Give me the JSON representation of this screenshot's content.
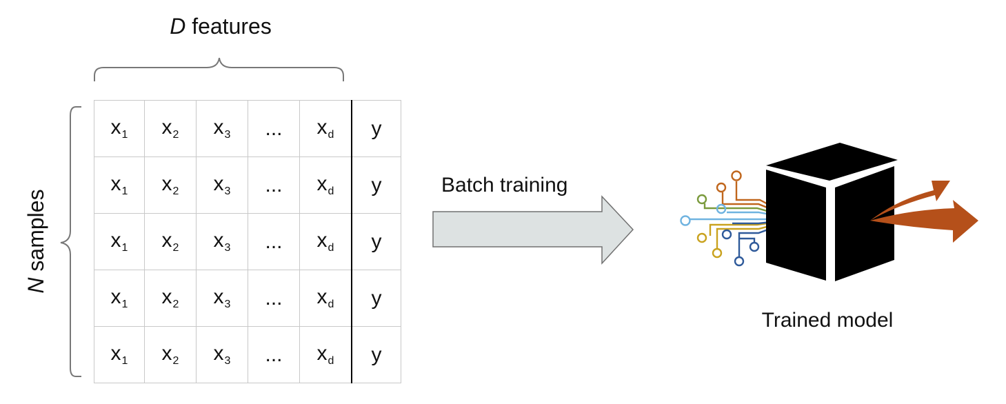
{
  "features": {
    "variable": "D",
    "text": " features"
  },
  "samples": {
    "variable": "N",
    "text": " samples"
  },
  "table": {
    "rows": [
      [
        "x",
        "x",
        "x",
        "...",
        "x",
        "y"
      ],
      [
        "x",
        "x",
        "x",
        "...",
        "x",
        "y"
      ],
      [
        "x",
        "x",
        "x",
        "...",
        "x",
        "y"
      ],
      [
        "x",
        "x",
        "x",
        "...",
        "x",
        "y"
      ],
      [
        "x",
        "x",
        "x",
        "...",
        "x",
        "y"
      ]
    ],
    "subscripts": [
      "1",
      "2",
      "3",
      "",
      "d",
      ""
    ]
  },
  "arrow_label": "Batch training",
  "model_label": "Trained model",
  "colors": {
    "arrow_fill": "#dde2e2",
    "arrow_stroke": "#707070",
    "cube": "#000000",
    "output_arrows": "#b5501a",
    "circuit": [
      "#c0661c",
      "#7a9a3c",
      "#6fb3e0",
      "#c9a21e",
      "#2f5a9a"
    ]
  }
}
